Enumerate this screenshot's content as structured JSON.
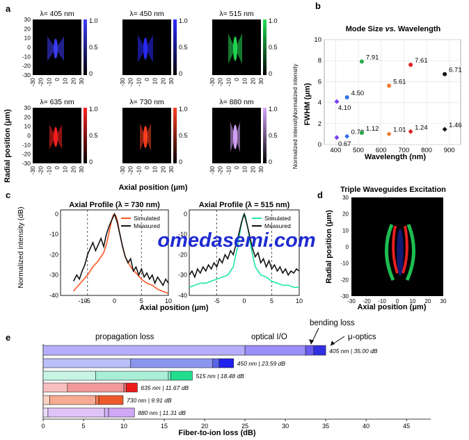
{
  "panel_labels": [
    "a",
    "b",
    "c",
    "d",
    "e"
  ],
  "watermark": "omedasemi.com",
  "colors": {
    "c405": "#7b3ff2",
    "c450": "#2946e6",
    "c515": "#27c95a",
    "c635": "#f05a2a",
    "c730": "#e02020",
    "c880": "#222222"
  },
  "chart_data": [
    {
      "panel": "a",
      "type": "heatmap",
      "xlabel": "Axial position (μm)",
      "ylabel": "Radial position (μm)",
      "x_ticks": [
        "-30",
        "-20",
        "-10",
        "0",
        "10",
        "20",
        "30"
      ],
      "y_ticks": [
        "-30",
        "-20",
        "-10",
        "0",
        "10",
        "20",
        "30"
      ],
      "colorbar_ticks": [
        "1.0",
        "0.5",
        "0"
      ],
      "colorbar_label": "Normalized intensity",
      "subplots": [
        {
          "title": "λ= 405 nm",
          "color": "#3d3dff"
        },
        {
          "title": "λ= 450 nm",
          "color": "#2a2aff"
        },
        {
          "title": "λ= 515 nm",
          "color": "#22dd55"
        },
        {
          "title": "λ= 635 nm",
          "color": "#ff2020"
        },
        {
          "title": "λ= 730 nm",
          "color": "#ff4020"
        },
        {
          "title": "λ= 880 nm",
          "color": "#d9a6ff"
        }
      ]
    },
    {
      "panel": "b",
      "type": "scatter",
      "title": "Mode Size vs. Wavelength",
      "title_parts": [
        "Mode Size ",
        "vs.",
        " Wavelength"
      ],
      "xlabel": "Wavelength (nm)",
      "ylabel": "FWHM (μm)",
      "xlim": [
        350,
        950
      ],
      "ylim": [
        0,
        10
      ],
      "x_ticks": [
        400,
        500,
        600,
        700,
        800,
        900
      ],
      "y_ticks": [
        0,
        2,
        4,
        6,
        8,
        10
      ],
      "grid": true,
      "points": [
        {
          "x": 405,
          "y": 4.1,
          "label": "4.10",
          "color": "#7b3ff2",
          "marker": "diamond"
        },
        {
          "x": 405,
          "y": 0.67,
          "label": "0.67",
          "color": "#7b3ff2",
          "marker": "diamond"
        },
        {
          "x": 450,
          "y": 4.5,
          "label": "4.50",
          "color": "#2e6fe8",
          "marker": "circle"
        },
        {
          "x": 450,
          "y": 0.79,
          "label": "0.79",
          "color": "#2e6fe8",
          "marker": "diamond"
        },
        {
          "x": 515,
          "y": 7.91,
          "label": "7.91",
          "color": "#27a84a",
          "marker": "circle"
        },
        {
          "x": 515,
          "y": 1.12,
          "label": "1.12",
          "color": "#27a84a",
          "marker": "circle"
        },
        {
          "x": 635,
          "y": 5.61,
          "label": "5.61",
          "color": "#f07a2a",
          "marker": "circle"
        },
        {
          "x": 635,
          "y": 1.01,
          "label": "1.01",
          "color": "#f07a2a",
          "marker": "diamond"
        },
        {
          "x": 730,
          "y": 7.61,
          "label": "7.61",
          "color": "#e02020",
          "marker": "circle"
        },
        {
          "x": 730,
          "y": 1.24,
          "label": "1.24",
          "color": "#e02020",
          "marker": "diamond"
        },
        {
          "x": 880,
          "y": 6.71,
          "label": "6.71",
          "color": "#111111",
          "marker": "circle"
        },
        {
          "x": 880,
          "y": 1.46,
          "label": "1.46",
          "color": "#111111",
          "marker": "diamond"
        }
      ]
    },
    {
      "panel": "c",
      "type": "line",
      "ylabel": "Normalized intensity (dB)",
      "xlabel": "Axial position (μm)",
      "xlim": [
        -10,
        10
      ],
      "ylim": [
        -40,
        2
      ],
      "x_ticks": [
        "-5",
        "0",
        "5",
        "10"
      ],
      "y_ticks": [
        "0",
        "-10",
        "-20",
        "-30",
        "-40"
      ],
      "left_extra_tick": "-10",
      "dashed_x": [
        -5,
        5
      ],
      "subplots": [
        {
          "title": "Axial Profile (λ = 730 nm)",
          "series": [
            {
              "name": "Simulated",
              "color": "#ff5522",
              "x": [
                -7.6,
                -7,
                -6,
                -5,
                -4,
                -3,
                -2,
                -1.5,
                -1,
                -0.6,
                -0.3,
                0,
                0.3,
                0.6,
                1,
                1.5,
                2,
                3,
                4,
                5,
                6,
                7,
                8,
                9,
                10
              ],
              "y": [
                -38,
                -36,
                -33,
                -30,
                -26,
                -23,
                -19,
                -15,
                -9,
                -4,
                -1,
                0,
                -1,
                -4,
                -10,
                -16,
                -21,
                -26,
                -29,
                -32,
                -34,
                -35,
                -37,
                -38,
                -39
              ]
            },
            {
              "name": "Measured",
              "color": "#111111",
              "x": [
                -7.6,
                -7,
                -6.5,
                -6,
                -5.5,
                -5,
                -4.5,
                -4,
                -3.5,
                -3,
                -2.5,
                -2,
                -1.5,
                -1,
                -0.5,
                0,
                0.5,
                1,
                1.5,
                2,
                2.5,
                3,
                3.5,
                4,
                4.5,
                5,
                5.5,
                6,
                6.5,
                7,
                7.5,
                8,
                8.5,
                9,
                9.5,
                10
              ],
              "y": [
                -33,
                -30,
                -32,
                -28,
                -25,
                -20,
                -17,
                -14,
                -18,
                -15,
                -12,
                -16,
                -10,
                -6,
                -3,
                0,
                -4,
                -10,
                -16,
                -21,
                -24,
                -22,
                -28,
                -26,
                -30,
                -27,
                -31,
                -29,
                -32,
                -30,
                -34,
                -31,
                -33,
                -35,
                -32,
                -34
              ]
            }
          ]
        },
        {
          "title": "Axial Profile (λ = 515 nm)",
          "series": [
            {
              "name": "Simulated",
              "color": "#1de9a0",
              "x": [
                -10,
                -9,
                -8,
                -7,
                -6,
                -5,
                -4,
                -3,
                -2,
                -1.2,
                -0.6,
                -0.2,
                0,
                0.2,
                0.6,
                1.2,
                2,
                3,
                4,
                5,
                6,
                7,
                8,
                9,
                10
              ],
              "y": [
                -36,
                -35,
                -34,
                -34,
                -33,
                -32,
                -31,
                -30,
                -26,
                -16,
                -6,
                -1,
                0,
                -1,
                -6,
                -16,
                -26,
                -30,
                -31,
                -33,
                -34,
                -35,
                -35,
                -36,
                -36
              ]
            },
            {
              "name": "Measured",
              "color": "#111111",
              "x": [
                -10,
                -9.5,
                -9,
                -8.5,
                -8,
                -7.5,
                -7,
                -6.5,
                -6,
                -5.5,
                -5,
                -4.5,
                -4,
                -3.5,
                -3,
                -2.5,
                -2,
                -1.5,
                -1,
                -0.5,
                0,
                0.5,
                1,
                1.5,
                2,
                2.5,
                3,
                3.5,
                4,
                4.5,
                5,
                5.5,
                6,
                6.5,
                7,
                7.5,
                8,
                8.5,
                9,
                9.5,
                10
              ],
              "y": [
                -30,
                -28,
                -31,
                -27,
                -29,
                -26,
                -28,
                -25,
                -27,
                -24,
                -26,
                -22,
                -24,
                -20,
                -22,
                -18,
                -20,
                -15,
                -10,
                -4,
                0,
                -5,
                -11,
                -17,
                -21,
                -19,
                -24,
                -22,
                -26,
                -23,
                -27,
                -25,
                -28,
                -26,
                -29,
                -27,
                -30,
                -28,
                -29,
                -27,
                -28
              ]
            }
          ]
        }
      ]
    },
    {
      "panel": "d",
      "type": "heatmap",
      "title": "Triple Waveguides Excitation",
      "xlabel": "Axial position (μm)",
      "ylabel": "Radial position (μm)",
      "x_ticks": [
        "-30",
        "-20",
        "-10",
        "0",
        "10",
        "20",
        "30"
      ],
      "y_ticks": [
        "30",
        "20",
        "10",
        "0",
        "-10",
        "-20",
        "-30"
      ]
    },
    {
      "panel": "e",
      "type": "bar",
      "xlabel": "Fiber-to-ion loss (dB)",
      "xlim": [
        0,
        48
      ],
      "x_ticks": [
        0,
        5,
        10,
        15,
        20,
        25,
        30,
        35,
        40,
        45
      ],
      "annotations": [
        "propagation loss",
        "optical I/O",
        "bending loss",
        "μ-optics"
      ],
      "bars": [
        {
          "label": "405 nm",
          "total_label": "35.00 dB",
          "total": 35.0,
          "segments": [
            25,
            7.5,
            1,
            1.5
          ],
          "colors": [
            "#b6aefc",
            "#9a8ef8",
            "#6a5cf0",
            "#3030e0"
          ]
        },
        {
          "label": "450 nm",
          "total_label": "23.59 dB",
          "total": 23.59,
          "segments": [
            10.8,
            10.2,
            0.8,
            1.79
          ],
          "colors": [
            "#b9c0f7",
            "#8c96ef",
            "#5a66e6",
            "#2222ee"
          ]
        },
        {
          "label": "515 nm",
          "total_label": "18.48 dB",
          "total": 18.48,
          "segments": [
            6.5,
            9,
            0.3,
            2.68
          ],
          "colors": [
            "#c6f5e4",
            "#a9eed5",
            "#7fe6bf",
            "#21de8f"
          ]
        },
        {
          "label": "635 nm",
          "total_label": "11.67 dB",
          "total": 11.67,
          "segments": [
            3.0,
            7.0,
            0.3,
            1.37
          ],
          "colors": [
            "#f8c0c0",
            "#f29a9a",
            "#ec7070",
            "#ee1a1a"
          ]
        },
        {
          "label": "730 nm",
          "total_label": "9.91 dB",
          "total": 9.91,
          "segments": [
            0.8,
            5.7,
            0.4,
            3.01
          ],
          "colors": [
            "#fbd1c3",
            "#f7ab93",
            "#f37a58",
            "#f05a2a"
          ]
        },
        {
          "label": "880 nm",
          "total_label": "11.31 dB",
          "total": 11.31,
          "segments": [
            0.6,
            7.0,
            0.5,
            3.21
          ],
          "colors": [
            "#ecdafb",
            "#e0c4f8",
            "#d3b0f5",
            "#d0a6f5"
          ]
        }
      ]
    }
  ]
}
